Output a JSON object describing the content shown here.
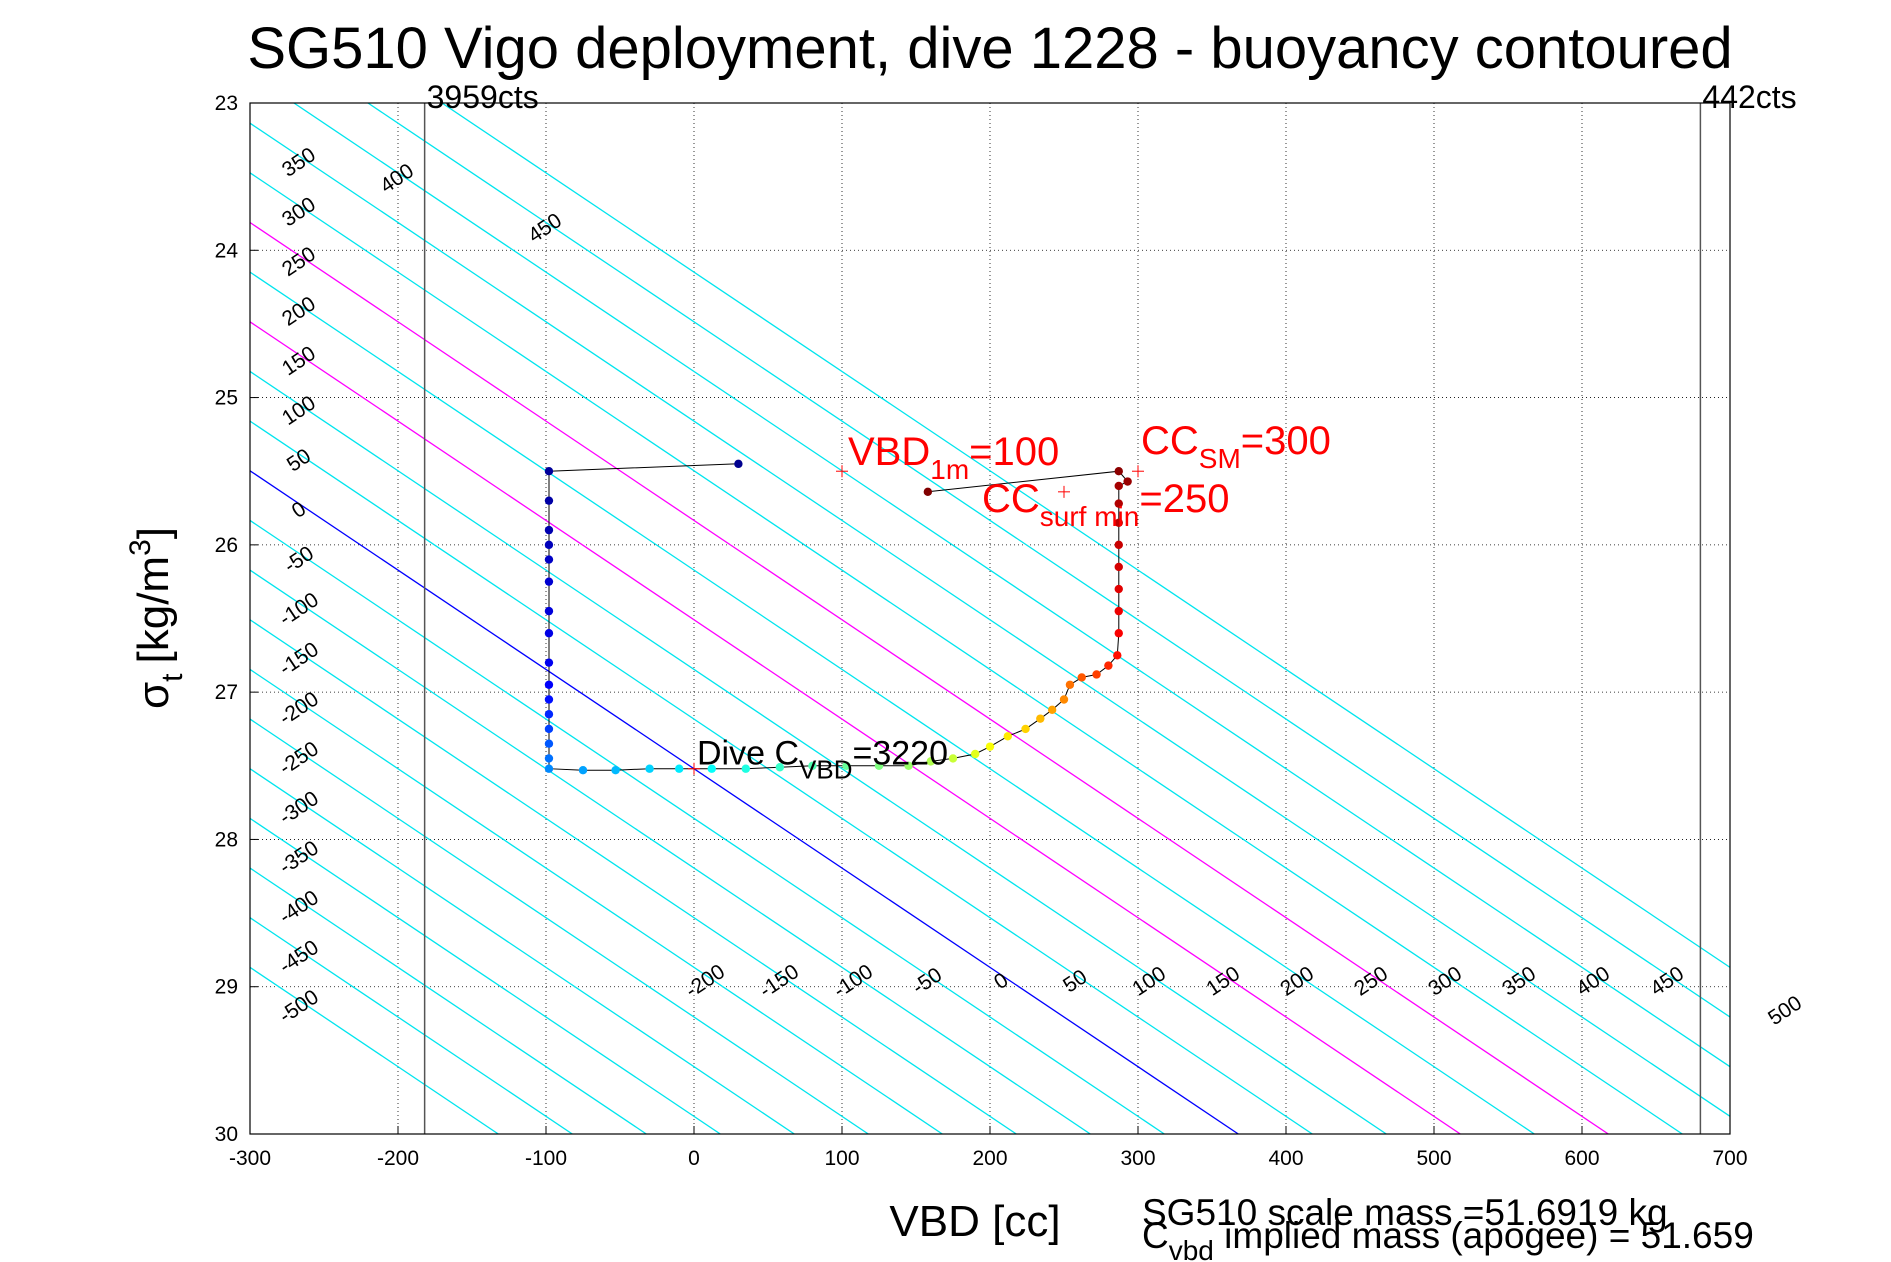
{
  "chart_data": {
    "type": "scatter",
    "title": "SG510 Vigo deployment, dive 1228 - buoyancy contoured",
    "xlabel": "VBD [cc]",
    "ylabel": "σt [kg/m3]",
    "ylabel_main": "σ",
    "ylabel_sub": "t",
    "ylabel_unit": "[kg/m",
    "ylabel_sup": "3",
    "ylabel_close": "]",
    "xlim": [
      -300,
      700
    ],
    "ylim": [
      23,
      30
    ],
    "y_reversed": true,
    "grid": "dotted",
    "x_ticks": [
      -300,
      -200,
      -100,
      0,
      100,
      200,
      300,
      400,
      500,
      600,
      700
    ],
    "y_ticks": [
      23,
      24,
      25,
      26,
      27,
      28,
      29,
      30
    ],
    "buoyancy_contours": [
      -500,
      -450,
      -400,
      -350,
      -300,
      -250,
      -200,
      -150,
      -100,
      -50,
      0,
      50,
      100,
      150,
      200,
      250,
      300,
      350,
      400,
      450,
      500
    ],
    "contour_colors": {
      "default": "#00e5ee",
      "zero": "#0000ff",
      "highlight": "#ff00ff"
    },
    "highlight_contours": [
      150,
      250
    ],
    "contour_labels_upper": [
      -500,
      -450,
      -400,
      -350,
      -300,
      -250,
      -200,
      -150,
      -100,
      -50,
      0,
      50,
      100,
      150,
      200,
      250,
      300,
      350,
      400,
      450
    ],
    "contour_labels_lower": [
      -200,
      -150,
      -100,
      -50,
      0,
      50,
      100,
      150,
      200,
      250,
      300,
      350,
      400,
      450,
      500
    ],
    "vbd_limits": [
      {
        "x": -182,
        "label": "3959cts"
      },
      {
        "x": 680,
        "label": "442cts"
      }
    ],
    "trajectory": [
      {
        "x": 30,
        "y": 25.45
      },
      {
        "x": -98,
        "y": 25.5
      },
      {
        "x": -98,
        "y": 25.7
      },
      {
        "x": -98,
        "y": 25.9
      },
      {
        "x": -98,
        "y": 26.0
      },
      {
        "x": -98,
        "y": 26.1
      },
      {
        "x": -98,
        "y": 26.25
      },
      {
        "x": -98,
        "y": 26.45
      },
      {
        "x": -98,
        "y": 26.6
      },
      {
        "x": -98,
        "y": 26.8
      },
      {
        "x": -98,
        "y": 26.95
      },
      {
        "x": -98,
        "y": 27.05
      },
      {
        "x": -98,
        "y": 27.15
      },
      {
        "x": -98,
        "y": 27.25
      },
      {
        "x": -98,
        "y": 27.35
      },
      {
        "x": -98,
        "y": 27.45
      },
      {
        "x": -98,
        "y": 27.52
      },
      {
        "x": -75,
        "y": 27.53
      },
      {
        "x": -53,
        "y": 27.53
      },
      {
        "x": -30,
        "y": 27.52
      },
      {
        "x": -10,
        "y": 27.52
      },
      {
        "x": 12,
        "y": 27.52
      },
      {
        "x": 35,
        "y": 27.52
      },
      {
        "x": 58,
        "y": 27.51
      },
      {
        "x": 80,
        "y": 27.5
      },
      {
        "x": 103,
        "y": 27.5
      },
      {
        "x": 125,
        "y": 27.5
      },
      {
        "x": 145,
        "y": 27.5
      },
      {
        "x": 160,
        "y": 27.47
      },
      {
        "x": 175,
        "y": 27.45
      },
      {
        "x": 190,
        "y": 27.42
      },
      {
        "x": 200,
        "y": 27.37
      },
      {
        "x": 212,
        "y": 27.3
      },
      {
        "x": 224,
        "y": 27.25
      },
      {
        "x": 234,
        "y": 27.18
      },
      {
        "x": 242,
        "y": 27.12
      },
      {
        "x": 250,
        "y": 27.05
      },
      {
        "x": 254,
        "y": 26.95
      },
      {
        "x": 262,
        "y": 26.9
      },
      {
        "x": 272,
        "y": 26.88
      },
      {
        "x": 280,
        "y": 26.82
      },
      {
        "x": 286,
        "y": 26.75
      },
      {
        "x": 287,
        "y": 26.6
      },
      {
        "x": 287,
        "y": 26.45
      },
      {
        "x": 287,
        "y": 26.3
      },
      {
        "x": 287,
        "y": 26.15
      },
      {
        "x": 287,
        "y": 26.0
      },
      {
        "x": 287,
        "y": 25.85
      },
      {
        "x": 287,
        "y": 25.72
      },
      {
        "x": 287,
        "y": 25.6
      },
      {
        "x": 293,
        "y": 25.57
      },
      {
        "x": 287,
        "y": 25.5
      },
      {
        "x": 158,
        "y": 25.64
      }
    ],
    "annotations": [
      {
        "x": 100,
        "y": 25.5,
        "main": "VBD",
        "sub": "1m",
        "rest": "=100",
        "color": "#ff0000"
      },
      {
        "x": 300,
        "y": 25.5,
        "main": "CC",
        "sub": "SM",
        "rest": "=300",
        "color": "#ff0000"
      },
      {
        "x": 250,
        "y": 25.64,
        "main": "CC",
        "sub": "surf min",
        "rest": "=250",
        "color": "#ff0000"
      },
      {
        "x": 0,
        "y": 27.52,
        "main": "Dive C",
        "sub": "VBD",
        "rest": "=3220",
        "color": "#000000"
      }
    ]
  },
  "footnote": {
    "line1": "SG510 scale mass =51.6919 kg",
    "line2_main": "C",
    "line2_sub": "vbd",
    "line2_rest": " implied mass (apogee) = 51.659"
  }
}
